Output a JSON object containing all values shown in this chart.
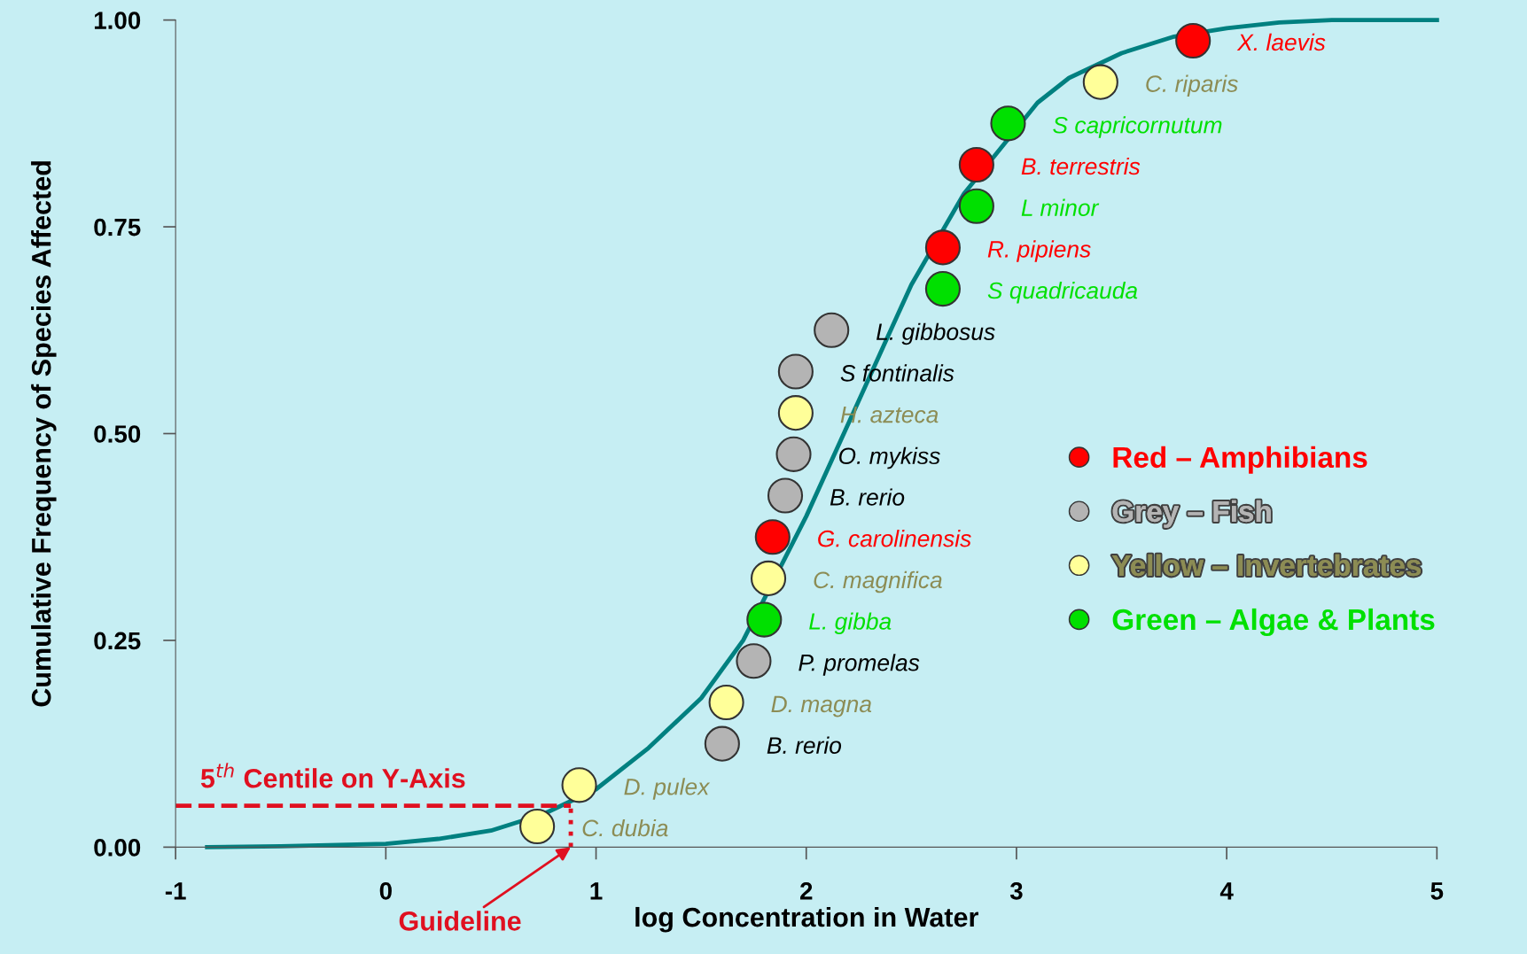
{
  "chart_data": {
    "type": "scatter",
    "xlabel": "log Concentration in Water",
    "ylabel": "Cumulative Frequency of Species Affected",
    "xlim": [
      -1,
      5
    ],
    "ylim": [
      0,
      1
    ],
    "xticks": [
      -1,
      0,
      1,
      2,
      3,
      4,
      5
    ],
    "yticks": [
      {
        "value": 0,
        "label": "0.00"
      },
      {
        "value": 0.25,
        "label": "0.25"
      },
      {
        "value": 0.5,
        "label": "0.50"
      },
      {
        "value": 0.75,
        "label": "0.75"
      },
      {
        "value": 1,
        "label": "1.00"
      }
    ],
    "grid": false,
    "legend": "right",
    "marker": "circle",
    "series": [
      {
        "type": "line",
        "color": "#008080",
        "marker": "none",
        "line_style": "solid",
        "x": [
          -0.85,
          -0.5,
          0,
          0.25,
          0.5,
          0.75,
          1,
          1.25,
          1.5,
          1.7,
          2,
          2.25,
          2.5,
          2.75,
          3.1,
          3.25,
          3.5,
          3.75,
          4,
          4.25,
          4.5,
          5
        ],
        "values": [
          0,
          0.001,
          0.004,
          0.01,
          0.02,
          0.04,
          0.07,
          0.12,
          0.18,
          0.25,
          0.4,
          0.54,
          0.68,
          0.79,
          0.9,
          0.93,
          0.96,
          0.98,
          0.99,
          0.997,
          1,
          1
        ]
      },
      {
        "type": "line",
        "color": "#e01020",
        "marker": "none",
        "line_style": "dashed",
        "x": [
          -1,
          0.88
        ],
        "values": [
          0.05,
          0.05
        ]
      },
      {
        "type": "line",
        "color": "#e01020",
        "marker": "none",
        "line_style": "dotted",
        "x": [
          0.88,
          0.88
        ],
        "values": [
          0,
          0.05
        ]
      },
      {
        "name": "Red – Amphibians",
        "color": "#ff0000",
        "x": [
          1.84,
          2.65,
          2.81,
          3.84
        ],
        "values": [
          0.375,
          0.725,
          0.825,
          0.975
        ],
        "value_labels": [
          "G. carolinensis",
          "R. pipiens",
          "B. terrestris",
          "X. laevis"
        ]
      },
      {
        "name": "Grey – Fish",
        "color": "#b4b4b4",
        "x": [
          1.6,
          1.75,
          1.9,
          1.94,
          1.95,
          2.12
        ],
        "values": [
          0.125,
          0.225,
          0.425,
          0.475,
          0.575,
          0.625
        ],
        "value_labels": [
          "B. rerio",
          "P. promelas",
          "B. rerio",
          "O. mykiss",
          "S fontinalis",
          "L. gibbosus"
        ]
      },
      {
        "name": "Yellow – Invertebrates",
        "color": "#ffff99",
        "x": [
          0.72,
          0.92,
          1.62,
          1.82,
          1.95,
          3.4
        ],
        "values": [
          0.025,
          0.075,
          0.175,
          0.325,
          0.525,
          0.925
        ],
        "value_labels": [
          "C. dubia",
          "D. pulex",
          "D. magna",
          "C. magnifica",
          "H. azteca",
          "C. riparis"
        ]
      },
      {
        "name": "Green – Algae & Plants",
        "color": "#00e000",
        "x": [
          1.8,
          2.65,
          2.81,
          2.96
        ],
        "values": [
          0.275,
          0.675,
          0.775,
          0.875
        ],
        "value_labels": [
          "L. gibba",
          "S quadricauda",
          "L minor",
          "S capricornutum"
        ]
      }
    ],
    "annotations": [
      {
        "text": "5$^{th}$ Centile on Y-Axis",
        "x": -1,
        "y": 0.05
      },
      {
        "text": "Guideline",
        "x": 0.88,
        "y": 0
      }
    ]
  }
}
